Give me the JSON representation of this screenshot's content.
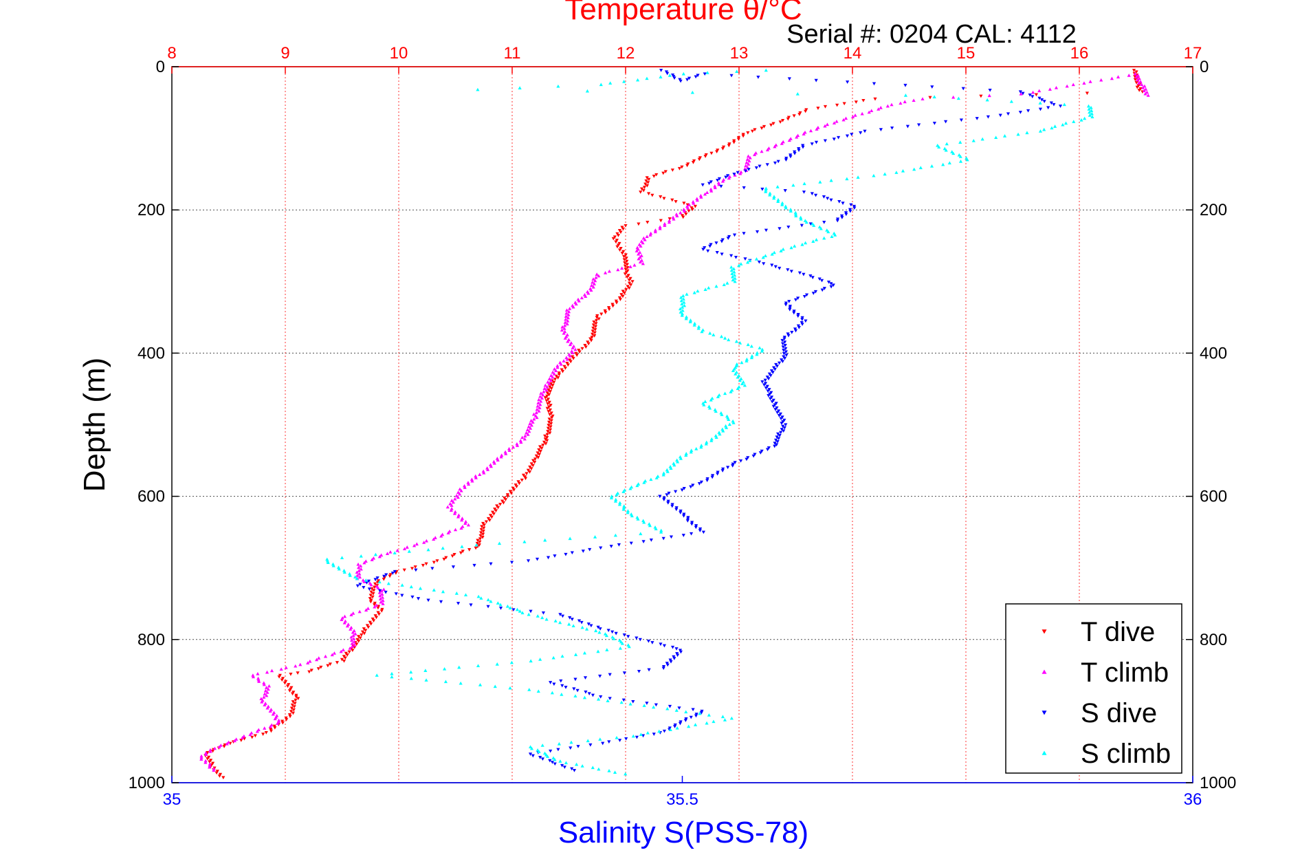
{
  "chart_data": {
    "type": "scatter",
    "title": "Temperature θ/°C",
    "subtitle": "Serial #: 0204  CAL: 4112",
    "ylabel": "Depth (m)",
    "xlabel_bottom": "Salinity S(PSS-78)",
    "colors": {
      "top_axis": "#ff0000",
      "bottom_axis": "#0000ff",
      "frame": "#000000"
    },
    "y_axis": {
      "range": [
        0,
        1000
      ],
      "reversed": true,
      "ticks": [
        "0",
        "200",
        "400",
        "600",
        "800",
        "1000"
      ]
    },
    "top_axis": {
      "range": [
        8,
        17
      ],
      "ticks": [
        "8",
        "9",
        "10",
        "11",
        "12",
        "13",
        "14",
        "15",
        "16",
        "17"
      ]
    },
    "bottom_axis": {
      "range": [
        35,
        36
      ],
      "ticks": [
        "35",
        "35.5",
        "36"
      ]
    },
    "grid": true,
    "legend": {
      "position": "bottom-right",
      "items": [
        {
          "label": "T dive",
          "color": "#ff0000",
          "marker": "triangle-down"
        },
        {
          "label": "T climb",
          "color": "#ff00ff",
          "marker": "triangle-up"
        },
        {
          "label": "S dive",
          "color": "#0000ff",
          "marker": "triangle-down"
        },
        {
          "label": "S climb",
          "color": "#00ffff",
          "marker": "triangle-up"
        }
      ]
    },
    "series": [
      {
        "name": "T dive",
        "axis": "temperature",
        "color": "#ff0000",
        "marker": "triangle-down",
        "points": [
          [
            16.5,
            5
          ],
          [
            16.5,
            20
          ],
          [
            16.55,
            35
          ],
          [
            14.2,
            45
          ],
          [
            13.6,
            60
          ],
          [
            13.4,
            75
          ],
          [
            13.1,
            90
          ],
          [
            12.9,
            110
          ],
          [
            12.7,
            125
          ],
          [
            12.5,
            140
          ],
          [
            12.2,
            155
          ],
          [
            12.15,
            175
          ],
          [
            12.6,
            195
          ],
          [
            12.5,
            210
          ],
          [
            12.0,
            222
          ],
          [
            11.9,
            240
          ],
          [
            12.0,
            265
          ],
          [
            12.0,
            285
          ],
          [
            12.05,
            300
          ],
          [
            11.95,
            325
          ],
          [
            11.75,
            350
          ],
          [
            11.7,
            380
          ],
          [
            11.55,
            405
          ],
          [
            11.4,
            430
          ],
          [
            11.3,
            460
          ],
          [
            11.35,
            490
          ],
          [
            11.3,
            520
          ],
          [
            11.2,
            550
          ],
          [
            11.1,
            575
          ],
          [
            10.95,
            600
          ],
          [
            10.75,
            640
          ],
          [
            10.7,
            670
          ],
          [
            10.35,
            690
          ],
          [
            10.0,
            705
          ],
          [
            9.8,
            720
          ],
          [
            9.75,
            745
          ],
          [
            9.85,
            760
          ],
          [
            9.7,
            785
          ],
          [
            9.65,
            800
          ],
          [
            9.5,
            830
          ],
          [
            9.2,
            845
          ],
          [
            8.95,
            850
          ],
          [
            9.1,
            880
          ],
          [
            9.05,
            905
          ],
          [
            8.85,
            930
          ],
          [
            8.5,
            945
          ],
          [
            8.3,
            960
          ],
          [
            8.35,
            975
          ],
          [
            8.45,
            995
          ]
        ]
      },
      {
        "name": "T climb",
        "axis": "temperature",
        "color": "#ff00ff",
        "marker": "triangle-up",
        "points": [
          [
            16.6,
            40
          ],
          [
            16.55,
            25
          ],
          [
            16.5,
            10
          ],
          [
            15.5,
            38
          ],
          [
            14.6,
            45
          ],
          [
            14.3,
            55
          ],
          [
            14.0,
            70
          ],
          [
            13.7,
            85
          ],
          [
            13.4,
            105
          ],
          [
            13.1,
            125
          ],
          [
            13.05,
            145
          ],
          [
            12.85,
            160
          ],
          [
            12.7,
            178
          ],
          [
            12.55,
            195
          ],
          [
            12.4,
            215
          ],
          [
            12.2,
            235
          ],
          [
            12.1,
            255
          ],
          [
            12.15,
            275
          ],
          [
            11.75,
            290
          ],
          [
            11.7,
            310
          ],
          [
            11.5,
            340
          ],
          [
            11.45,
            370
          ],
          [
            11.55,
            395
          ],
          [
            11.4,
            420
          ],
          [
            11.3,
            445
          ],
          [
            11.25,
            465
          ],
          [
            11.2,
            490
          ],
          [
            11.1,
            520
          ],
          [
            10.9,
            545
          ],
          [
            10.75,
            565
          ],
          [
            10.55,
            590
          ],
          [
            10.45,
            615
          ],
          [
            10.6,
            640
          ],
          [
            10.3,
            660
          ],
          [
            9.9,
            680
          ],
          [
            9.65,
            695
          ],
          [
            9.65,
            715
          ],
          [
            9.85,
            730
          ],
          [
            9.85,
            750
          ],
          [
            9.5,
            770
          ],
          [
            9.6,
            790
          ],
          [
            9.6,
            810
          ],
          [
            9.15,
            835
          ],
          [
            8.7,
            850
          ],
          [
            8.85,
            865
          ],
          [
            8.8,
            885
          ],
          [
            8.95,
            915
          ],
          [
            8.65,
            935
          ],
          [
            8.4,
            950
          ],
          [
            8.25,
            965
          ],
          [
            8.4,
            985
          ]
        ]
      },
      {
        "name": "S dive",
        "axis": "salinity",
        "color": "#0000ff",
        "marker": "triangle-down",
        "points": [
          [
            35.48,
            5
          ],
          [
            35.5,
            20
          ],
          [
            35.52,
            10
          ],
          [
            35.83,
            35
          ],
          [
            35.87,
            55
          ],
          [
            35.8,
            70
          ],
          [
            35.68,
            90
          ],
          [
            35.62,
            110
          ],
          [
            35.6,
            130
          ],
          [
            35.55,
            150
          ],
          [
            35.52,
            165
          ],
          [
            35.62,
            175
          ],
          [
            35.67,
            195
          ],
          [
            35.65,
            215
          ],
          [
            35.55,
            235
          ],
          [
            35.52,
            255
          ],
          [
            35.58,
            275
          ],
          [
            35.62,
            290
          ],
          [
            35.65,
            305
          ],
          [
            35.6,
            330
          ],
          [
            35.62,
            355
          ],
          [
            35.6,
            380
          ],
          [
            35.6,
            405
          ],
          [
            35.58,
            440
          ],
          [
            35.59,
            470
          ],
          [
            35.6,
            500
          ],
          [
            35.59,
            530
          ],
          [
            35.55,
            555
          ],
          [
            35.52,
            580
          ],
          [
            35.48,
            600
          ],
          [
            35.5,
            625
          ],
          [
            35.52,
            650
          ],
          [
            35.42,
            672
          ],
          [
            35.35,
            690
          ],
          [
            35.22,
            705
          ],
          [
            35.18,
            725
          ],
          [
            35.25,
            745
          ],
          [
            35.38,
            765
          ],
          [
            35.42,
            785
          ],
          [
            35.46,
            800
          ],
          [
            35.5,
            815
          ],
          [
            35.48,
            840
          ],
          [
            35.37,
            860
          ],
          [
            35.42,
            880
          ],
          [
            35.52,
            900
          ],
          [
            35.48,
            930
          ],
          [
            35.42,
            945
          ],
          [
            35.35,
            960
          ],
          [
            35.4,
            985
          ]
        ]
      },
      {
        "name": "S climb",
        "axis": "salinity",
        "color": "#00ffff",
        "marker": "triangle-up",
        "points": [
          [
            35.58,
            5
          ],
          [
            35.5,
            10
          ],
          [
            35.42,
            25
          ],
          [
            35.3,
            32
          ],
          [
            35.72,
            40
          ],
          [
            35.9,
            55
          ],
          [
            35.9,
            70
          ],
          [
            35.85,
            90
          ],
          [
            35.75,
            110
          ],
          [
            35.78,
            130
          ],
          [
            35.7,
            150
          ],
          [
            35.58,
            170
          ],
          [
            35.6,
            195
          ],
          [
            35.62,
            215
          ],
          [
            35.65,
            235
          ],
          [
            35.6,
            255
          ],
          [
            35.55,
            280
          ],
          [
            35.55,
            300
          ],
          [
            35.5,
            320
          ],
          [
            35.5,
            345
          ],
          [
            35.52,
            370
          ],
          [
            35.58,
            395
          ],
          [
            35.55,
            420
          ],
          [
            35.56,
            445
          ],
          [
            35.52,
            470
          ],
          [
            35.55,
            495
          ],
          [
            35.53,
            520
          ],
          [
            35.5,
            545
          ],
          [
            35.48,
            570
          ],
          [
            35.43,
            600
          ],
          [
            35.45,
            625
          ],
          [
            35.48,
            650
          ],
          [
            35.3,
            668
          ],
          [
            35.15,
            688
          ],
          [
            35.18,
            715
          ],
          [
            35.3,
            740
          ],
          [
            35.35,
            765
          ],
          [
            35.42,
            790
          ],
          [
            35.45,
            810
          ],
          [
            35.35,
            830
          ],
          [
            35.2,
            850
          ],
          [
            35.35,
            870
          ],
          [
            35.45,
            890
          ],
          [
            35.55,
            910
          ],
          [
            35.45,
            935
          ],
          [
            35.35,
            950
          ],
          [
            35.38,
            970
          ],
          [
            35.45,
            990
          ]
        ]
      }
    ]
  }
}
